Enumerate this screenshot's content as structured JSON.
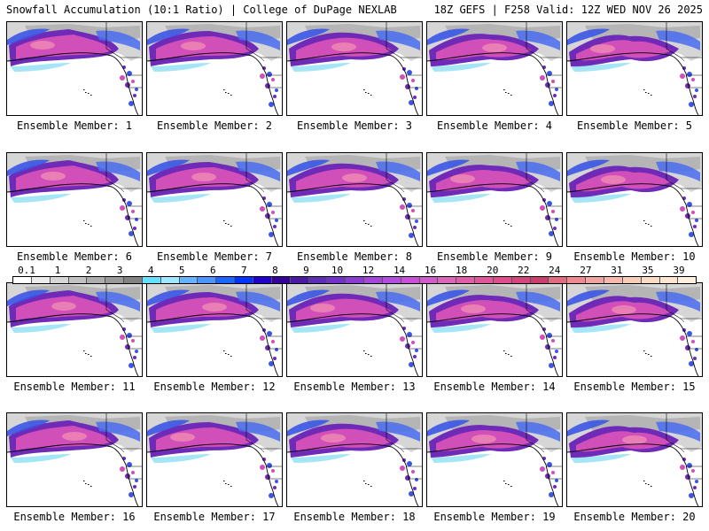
{
  "header": {
    "left": "Snowfall Accumulation (10:1 Ratio) | College of DuPage NEXLAB",
    "right": "18Z GEFS | F258 Valid: 12Z WED NOV 26 2025"
  },
  "legend": {
    "labels": [
      "0.1",
      "1",
      "2",
      "3",
      "4",
      "5",
      "6",
      "7",
      "8",
      "9",
      "10",
      "12",
      "14",
      "16",
      "18",
      "20",
      "22",
      "24",
      "27",
      "31",
      "35",
      "39"
    ],
    "colors": [
      "#ffffff",
      "#ebebeb",
      "#d6d6d6",
      "#c2c2c2",
      "#adadad",
      "#999999",
      "#828282",
      "#66e0ff",
      "#9fe8ff",
      "#66b3ff",
      "#4d94ff",
      "#1a66ff",
      "#0033ff",
      "#2200cc",
      "#330099",
      "#4a1aa0",
      "#5c2eb8",
      "#7133c7",
      "#8a3dd1",
      "#a347db",
      "#b34ddf",
      "#c84fd8",
      "#d05cc8",
      "#d966b8",
      "#e05ea8",
      "#e0569a",
      "#e04d8c",
      "#d4477e",
      "#c94070",
      "#e06a80",
      "#ec8a90",
      "#f0a2a0",
      "#f4b8ac",
      "#f8cdb8",
      "#fadcc4",
      "#fce6d0",
      "#fdf0e0"
    ]
  },
  "panels": [
    {
      "caption": "Ensemble Member: 1"
    },
    {
      "caption": "Ensemble Member: 2"
    },
    {
      "caption": "Ensemble Member: 3"
    },
    {
      "caption": "Ensemble Member: 4"
    },
    {
      "caption": "Ensemble Member: 5"
    },
    {
      "caption": "Ensemble Member: 6"
    },
    {
      "caption": "Ensemble Member: 7"
    },
    {
      "caption": "Ensemble Member: 8"
    },
    {
      "caption": "Ensemble Member: 9"
    },
    {
      "caption": "Ensemble Member: 10"
    },
    {
      "caption": "Ensemble Member: 11"
    },
    {
      "caption": "Ensemble Member: 12"
    },
    {
      "caption": "Ensemble Member: 13"
    },
    {
      "caption": "Ensemble Member: 14"
    },
    {
      "caption": "Ensemble Member: 15"
    },
    {
      "caption": "Ensemble Member: 16"
    },
    {
      "caption": "Ensemble Member: 17"
    },
    {
      "caption": "Ensemble Member: 18"
    },
    {
      "caption": "Ensemble Member: 19"
    },
    {
      "caption": "Ensemble Member: 20"
    }
  ]
}
